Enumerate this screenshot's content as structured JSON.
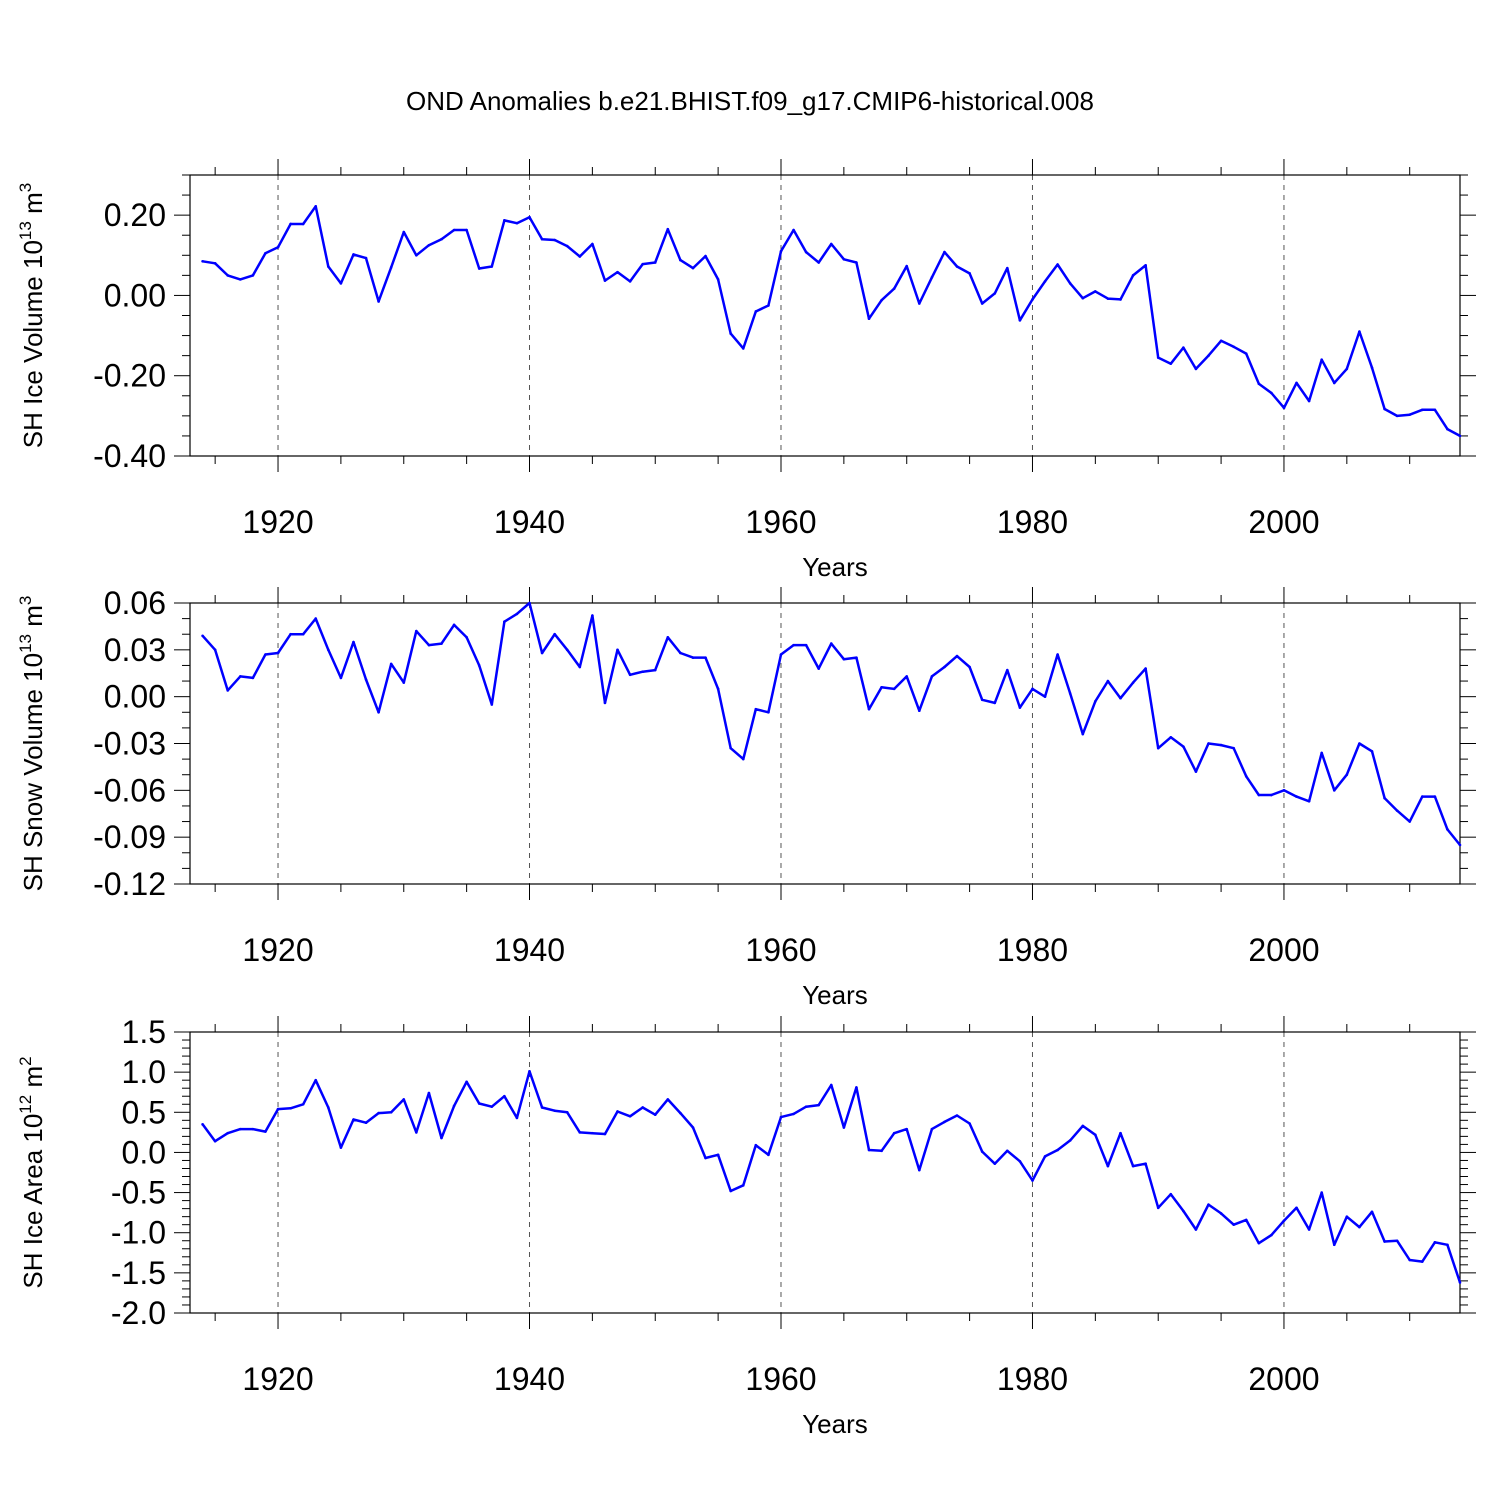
{
  "figure": {
    "title": "OND Anomalies b.e21.BHIST.f09_g17.CMIP6-historical.008"
  },
  "colors": {
    "line": "#0000ff",
    "axis": "#000000",
    "grid": "#555555"
  },
  "chart_data": [
    {
      "type": "line",
      "name": "sh-ice-volume",
      "ylabel": "SH Ice Volume 10",
      "ylabel_exp": "13",
      "ylabel_unit": " m",
      "ylabel_unit_exp": "3",
      "xlabel": "Years",
      "xlim": [
        1913,
        2014
      ],
      "ylim": [
        -0.4,
        0.3
      ],
      "xticks": [
        1920,
        1940,
        1960,
        1980,
        2000
      ],
      "xtick_labels": [
        "1920",
        "1940",
        "1960",
        "1980",
        "2000"
      ],
      "yticks": [
        -0.4,
        -0.2,
        0.0,
        0.2
      ],
      "ytick_labels": [
        "-0.40",
        "-0.20",
        "0.00",
        "0.20"
      ],
      "yminor_step": 0.05,
      "grid": "vertical dashed at major x ticks",
      "x_start": 1914,
      "values": [
        0.085,
        0.08,
        0.05,
        0.04,
        0.05,
        0.105,
        0.12,
        0.178,
        0.178,
        0.222,
        0.072,
        0.03,
        0.102,
        0.093,
        -0.015,
        0.07,
        0.158,
        0.1,
        0.125,
        0.14,
        0.163,
        0.163,
        0.067,
        0.072,
        0.187,
        0.18,
        0.195,
        0.14,
        0.138,
        0.123,
        0.097,
        0.128,
        0.037,
        0.058,
        0.035,
        0.078,
        0.082,
        0.165,
        0.088,
        0.068,
        0.098,
        0.04,
        -0.095,
        -0.132,
        -0.04,
        -0.025,
        0.11,
        0.163,
        0.108,
        0.082,
        0.128,
        0.09,
        0.082,
        -0.058,
        -0.012,
        0.017,
        0.073,
        -0.02,
        0.045,
        0.108,
        0.072,
        0.055,
        -0.02,
        0.005,
        0.068,
        -0.062,
        -0.01,
        0.035,
        0.077,
        0.03,
        -0.007,
        0.01,
        -0.008,
        -0.01,
        0.05,
        0.075,
        -0.155,
        -0.17,
        -0.13,
        -0.183,
        -0.15,
        -0.113,
        -0.128,
        -0.145,
        -0.22,
        -0.243,
        -0.28,
        -0.218,
        -0.263,
        -0.16,
        -0.218,
        -0.183,
        -0.09,
        -0.18,
        -0.283,
        -0.3,
        -0.297,
        -0.285,
        -0.285,
        -0.333,
        -0.35
      ]
    },
    {
      "type": "line",
      "name": "sh-snow-volume",
      "ylabel": "SH Snow Volume 10",
      "ylabel_exp": "13",
      "ylabel_unit": " m",
      "ylabel_unit_exp": "3",
      "xlabel": "Years",
      "xlim": [
        1913,
        2014
      ],
      "ylim": [
        -0.12,
        0.06
      ],
      "xticks": [
        1920,
        1940,
        1960,
        1980,
        2000
      ],
      "xtick_labels": [
        "1920",
        "1940",
        "1960",
        "1980",
        "2000"
      ],
      "yticks": [
        -0.12,
        -0.09,
        -0.06,
        -0.03,
        0.0,
        0.03,
        0.06
      ],
      "ytick_labels": [
        "-0.12",
        "-0.09",
        "-0.06",
        "-0.03",
        "0.00",
        "0.03",
        "0.06"
      ],
      "yminor_step": 0.01,
      "grid": "vertical dashed at major x ticks",
      "x_start": 1914,
      "values": [
        0.039,
        0.03,
        0.004,
        0.013,
        0.012,
        0.027,
        0.028,
        0.04,
        0.04,
        0.05,
        0.03,
        0.012,
        0.035,
        0.011,
        -0.01,
        0.021,
        0.009,
        0.042,
        0.033,
        0.034,
        0.046,
        0.038,
        0.02,
        -0.005,
        0.048,
        0.053,
        0.06,
        0.028,
        0.04,
        0.03,
        0.019,
        0.052,
        -0.004,
        0.03,
        0.014,
        0.016,
        0.017,
        0.038,
        0.028,
        0.025,
        0.025,
        0.005,
        -0.033,
        -0.04,
        -0.008,
        -0.01,
        0.027,
        0.033,
        0.033,
        0.018,
        0.034,
        0.024,
        0.025,
        -0.008,
        0.006,
        0.005,
        0.013,
        -0.009,
        0.013,
        0.019,
        0.026,
        0.019,
        -0.002,
        -0.004,
        0.017,
        -0.007,
        0.005,
        0.0,
        0.027,
        0.002,
        -0.024,
        -0.003,
        0.01,
        -0.001,
        0.009,
        0.018,
        -0.033,
        -0.026,
        -0.032,
        -0.048,
        -0.03,
        -0.031,
        -0.033,
        -0.051,
        -0.063,
        -0.063,
        -0.06,
        -0.064,
        -0.067,
        -0.036,
        -0.06,
        -0.05,
        -0.03,
        -0.035,
        -0.065,
        -0.073,
        -0.08,
        -0.064,
        -0.064,
        -0.085,
        -0.095
      ]
    },
    {
      "type": "line",
      "name": "sh-ice-area",
      "ylabel": "SH Ice Area 10",
      "ylabel_exp": "12",
      "ylabel_unit": " m",
      "ylabel_unit_exp": "2",
      "xlabel": "Years",
      "xlim": [
        1913,
        2014
      ],
      "ylim": [
        -2.0,
        1.5
      ],
      "xticks": [
        1920,
        1940,
        1960,
        1980,
        2000
      ],
      "xtick_labels": [
        "1920",
        "1940",
        "1960",
        "1980",
        "2000"
      ],
      "yticks": [
        -2.0,
        -1.5,
        -1.0,
        -0.5,
        0.0,
        0.5,
        1.0,
        1.5
      ],
      "ytick_labels": [
        "-2.0",
        "-1.5",
        "-1.0",
        "-0.5",
        "0.0",
        "0.5",
        "1.0",
        "1.5"
      ],
      "yminor_step": 0.1,
      "grid": "vertical dashed at major x ticks",
      "x_start": 1914,
      "values": [
        0.35,
        0.14,
        0.24,
        0.29,
        0.29,
        0.26,
        0.54,
        0.55,
        0.6,
        0.9,
        0.56,
        0.06,
        0.41,
        0.37,
        0.49,
        0.5,
        0.66,
        0.25,
        0.74,
        0.18,
        0.58,
        0.88,
        0.61,
        0.57,
        0.7,
        0.43,
        1.01,
        0.56,
        0.52,
        0.5,
        0.25,
        0.24,
        0.23,
        0.51,
        0.45,
        0.56,
        0.47,
        0.66,
        0.49,
        0.31,
        -0.07,
        -0.03,
        -0.48,
        -0.41,
        0.09,
        -0.03,
        0.44,
        0.48,
        0.57,
        0.59,
        0.84,
        0.31,
        0.81,
        0.03,
        0.02,
        0.24,
        0.29,
        -0.22,
        0.29,
        0.38,
        0.46,
        0.36,
        0.01,
        -0.14,
        0.02,
        -0.11,
        -0.35,
        -0.05,
        0.03,
        0.15,
        0.33,
        0.22,
        -0.17,
        0.24,
        -0.17,
        -0.14,
        -0.69,
        -0.52,
        -0.73,
        -0.96,
        -0.65,
        -0.76,
        -0.9,
        -0.84,
        -1.13,
        -1.03,
        -0.85,
        -0.69,
        -0.96,
        -0.5,
        -1.15,
        -0.8,
        -0.93,
        -0.74,
        -1.11,
        -1.1,
        -1.34,
        -1.36,
        -1.12,
        -1.15,
        -1.62
      ]
    }
  ]
}
